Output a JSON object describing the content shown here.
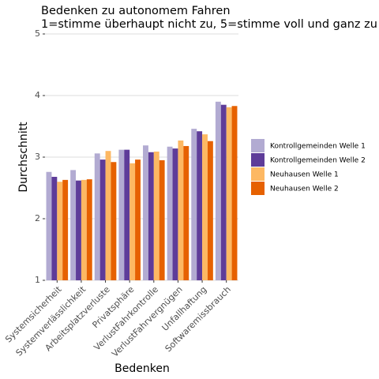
{
  "chart_data": {
    "type": "bar",
    "title": "Bedenken zu autonomem Fahren",
    "subtitle": "1=stimme überhaupt nicht zu, 5=stimme voll und ganz zu",
    "x_label": "Bedenken",
    "y_label": "Durchschnitt",
    "categories": [
      "Systemsicherheit",
      "Systemverlässlichkeit",
      "Arbeitsplatzverluste",
      "Privatsphäre",
      "VerlustFahrkontrolle",
      "VerlustFahrvergnügen",
      "Unfallhaftung",
      "Softwaremissbrauch"
    ],
    "series": [
      {
        "name": "Kontrollgemeinden Welle 1",
        "color": "#b2abd2",
        "values": [
          2.76,
          2.79,
          3.06,
          3.12,
          3.19,
          3.17,
          3.46,
          3.9
        ]
      },
      {
        "name": "Kontrollgemeinden Welle 2",
        "color": "#5e3c99",
        "values": [
          2.68,
          2.62,
          2.96,
          3.12,
          3.08,
          3.14,
          3.42,
          3.85
        ]
      },
      {
        "name": "Neuhausen Welle 1",
        "color": "#fdb863",
        "values": [
          2.6,
          2.63,
          3.1,
          2.9,
          3.09,
          3.27,
          3.37,
          3.81
        ]
      },
      {
        "name": "Neuhausen Welle 2",
        "color": "#e66101",
        "values": [
          2.63,
          2.64,
          2.92,
          2.96,
          2.95,
          3.18,
          3.26,
          3.83
        ]
      }
    ],
    "ylim": [
      1,
      5
    ],
    "yticks": [
      1,
      2,
      3,
      4,
      5
    ],
    "grid": true,
    "legend": "right"
  }
}
